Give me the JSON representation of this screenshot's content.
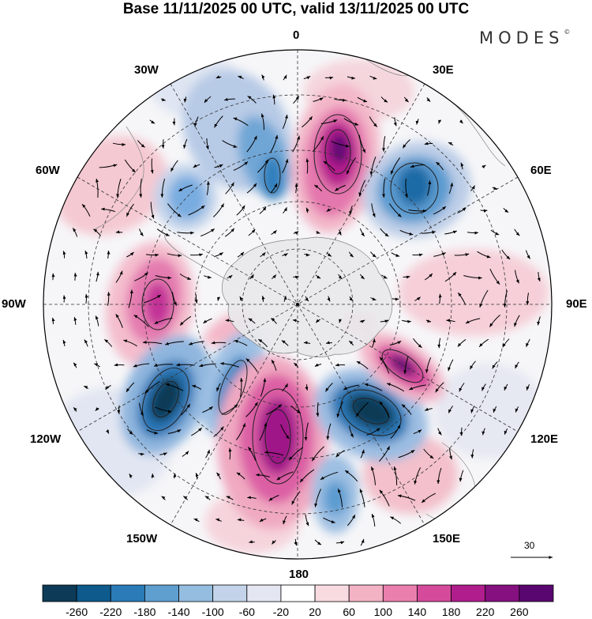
{
  "header": {
    "title": "Base 11/11/2025 00 UTC, valid 13/11/2025 00 UTC",
    "brand": "MODES"
  },
  "map": {
    "projection": "south-polar-stereographic",
    "longitude_labels": {
      "top": "0",
      "top_right": "30E",
      "right_upper": "60E",
      "right": "90E",
      "right_lower": "120E",
      "bottom_right": "150E",
      "bottom": "180",
      "bottom_left": "150W",
      "left_lower": "120W",
      "left": "90W",
      "left_upper": "60W",
      "top_left": "30W"
    },
    "reference_vector": {
      "label": "30"
    }
  },
  "colorbar": {
    "tick_labels": [
      "-260",
      "-220",
      "-180",
      "-140",
      "-100",
      "-60",
      "-20",
      "20",
      "60",
      "100",
      "140",
      "180",
      "220",
      "260"
    ],
    "colors": [
      "#0d3a57",
      "#0e5a8c",
      "#2a7bb8",
      "#5e9fd0",
      "#94bde0",
      "#c3d4ea",
      "#e4e6f2",
      "#ffffff",
      "#f8dbe1",
      "#f3b3c5",
      "#ea7fae",
      "#d64a9c",
      "#b01d8c",
      "#851080",
      "#5a0670"
    ]
  }
}
